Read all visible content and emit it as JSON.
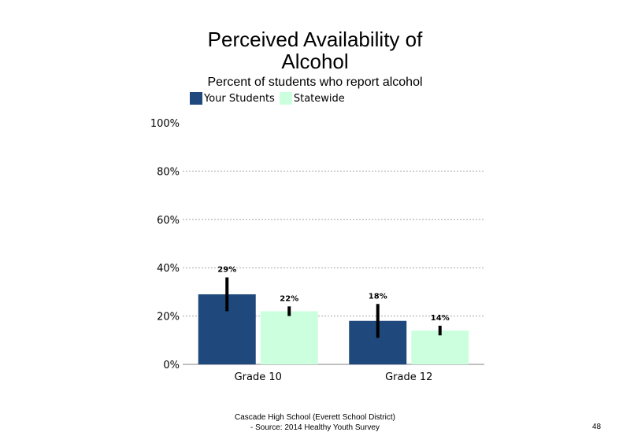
{
  "chart_data": {
    "type": "bar",
    "title_line1": "Perceived Availability of",
    "title_line2": "Alcohol",
    "subtitle": "Percent of students  who report alcohol",
    "categories": [
      "Grade 10",
      "Grade 12"
    ],
    "series": [
      {
        "name": "Your Students",
        "color": "#1f497d",
        "values": [
          29,
          18
        ],
        "labels": [
          "29%",
          "18%"
        ],
        "error_low": [
          22,
          11
        ],
        "error_high": [
          36,
          25
        ]
      },
      {
        "name": "Statewide",
        "color": "#ccffdd",
        "values": [
          22,
          14
        ],
        "labels": [
          "22%",
          "14%"
        ],
        "error_low": [
          20,
          12
        ],
        "error_high": [
          24,
          16
        ]
      }
    ],
    "ylim": [
      0,
      100
    ],
    "yticks": [
      0,
      20,
      40,
      60,
      80,
      100
    ],
    "ytick_labels": [
      "0%",
      "20%",
      "40%",
      "60%",
      "80%",
      "100%"
    ],
    "grid": true,
    "legend_position": "top-left"
  },
  "footer": {
    "line1": "Cascade High  School (Everett School District)",
    "line2": "- Source: 2014 Healthy  Youth Survey"
  },
  "page_number": "48"
}
